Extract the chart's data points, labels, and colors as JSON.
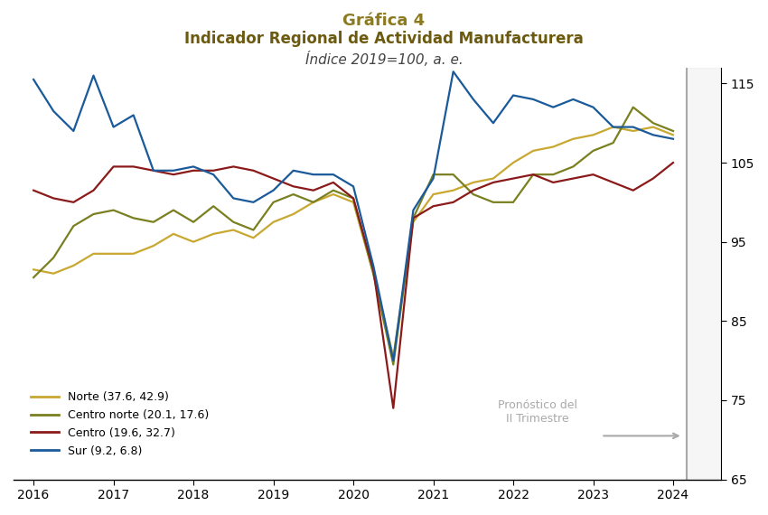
{
  "title1": "Gráfica 4",
  "title2": "Indicador Regional de Actividad Manufacturera",
  "title3": "Índice 2019=100, a. e.",
  "title_color": "#8B7A20",
  "subtitle_color": "#6B5A10",
  "ylim": [
    65,
    117
  ],
  "yticks": [
    65,
    75,
    85,
    95,
    105,
    115
  ],
  "xlim": [
    2015.75,
    2024.6
  ],
  "xticks": [
    2016,
    2017,
    2018,
    2019,
    2020,
    2021,
    2022,
    2023,
    2024
  ],
  "shaded_x_start": 2024.17,
  "shaded_x_end": 2024.6,
  "legend_labels": [
    "Norte (37.6, 42.9)",
    "Centro norte (20.1, 17.6)",
    "Centro (19.6, 32.7)",
    "Sur (9.2, 6.8)"
  ],
  "line_colors": [
    "#C8A830",
    "#7A8020",
    "#8B1A1A",
    "#1A5A9A"
  ],
  "norte": {
    "x": [
      2016.0,
      2016.25,
      2016.5,
      2016.75,
      2017.0,
      2017.25,
      2017.5,
      2017.75,
      2018.0,
      2018.25,
      2018.5,
      2018.75,
      2019.0,
      2019.25,
      2019.5,
      2019.75,
      2020.0,
      2020.25,
      2020.5,
      2020.75,
      2021.0,
      2021.25,
      2021.5,
      2021.75,
      2022.0,
      2022.25,
      2022.5,
      2022.75,
      2023.0,
      2023.25,
      2023.5,
      2023.75,
      2024.0
    ],
    "y": [
      91.5,
      91.0,
      92.0,
      93.5,
      93.5,
      93.5,
      94.5,
      96.0,
      95.0,
      96.0,
      96.5,
      95.5,
      97.5,
      98.5,
      100.0,
      101.0,
      100.0,
      91.0,
      80.5,
      97.5,
      101.0,
      101.5,
      102.5,
      103.0,
      105.0,
      106.5,
      107.0,
      108.0,
      108.5,
      109.5,
      109.0,
      109.5,
      108.5
    ]
  },
  "centro_norte": {
    "x": [
      2016.0,
      2016.25,
      2016.5,
      2016.75,
      2017.0,
      2017.25,
      2017.5,
      2017.75,
      2018.0,
      2018.25,
      2018.5,
      2018.75,
      2019.0,
      2019.25,
      2019.5,
      2019.75,
      2020.0,
      2020.25,
      2020.5,
      2020.75,
      2021.0,
      2021.25,
      2021.5,
      2021.75,
      2022.0,
      2022.25,
      2022.5,
      2022.75,
      2023.0,
      2023.25,
      2023.5,
      2023.75,
      2024.0
    ],
    "y": [
      90.5,
      93.0,
      97.0,
      98.5,
      99.0,
      98.0,
      97.5,
      99.0,
      97.5,
      99.5,
      97.5,
      96.5,
      100.0,
      101.0,
      100.0,
      101.5,
      100.5,
      91.0,
      79.5,
      98.0,
      103.5,
      103.5,
      101.0,
      100.0,
      100.0,
      103.5,
      103.5,
      104.5,
      106.5,
      107.5,
      112.0,
      110.0,
      109.0
    ]
  },
  "centro": {
    "x": [
      2016.0,
      2016.25,
      2016.5,
      2016.75,
      2017.0,
      2017.25,
      2017.5,
      2017.75,
      2018.0,
      2018.25,
      2018.5,
      2018.75,
      2019.0,
      2019.25,
      2019.5,
      2019.75,
      2020.0,
      2020.25,
      2020.5,
      2020.75,
      2021.0,
      2021.25,
      2021.5,
      2021.75,
      2022.0,
      2022.25,
      2022.5,
      2022.75,
      2023.0,
      2023.25,
      2023.5,
      2023.75,
      2024.0
    ],
    "y": [
      101.5,
      100.5,
      100.0,
      101.5,
      104.5,
      104.5,
      104.0,
      103.5,
      104.0,
      104.0,
      104.5,
      104.0,
      103.0,
      102.0,
      101.5,
      102.5,
      100.5,
      91.5,
      74.0,
      98.0,
      99.5,
      100.0,
      101.5,
      102.5,
      103.0,
      103.5,
      102.5,
      103.0,
      103.5,
      102.5,
      101.5,
      103.0,
      105.0
    ]
  },
  "sur": {
    "x": [
      2016.0,
      2016.25,
      2016.5,
      2016.75,
      2017.0,
      2017.25,
      2017.5,
      2017.75,
      2018.0,
      2018.25,
      2018.5,
      2018.75,
      2019.0,
      2019.25,
      2019.5,
      2019.75,
      2020.0,
      2020.25,
      2020.5,
      2020.75,
      2021.0,
      2021.25,
      2021.5,
      2021.75,
      2022.0,
      2022.25,
      2022.5,
      2022.75,
      2023.0,
      2023.25,
      2023.5,
      2023.75,
      2024.0
    ],
    "y": [
      115.5,
      111.5,
      109.0,
      116.0,
      109.5,
      111.0,
      104.0,
      104.0,
      104.5,
      103.5,
      100.5,
      100.0,
      101.5,
      104.0,
      103.5,
      103.5,
      102.0,
      92.0,
      80.0,
      99.0,
      103.0,
      116.5,
      113.0,
      110.0,
      113.5,
      113.0,
      112.0,
      113.0,
      112.0,
      109.5,
      109.5,
      108.5,
      108.0
    ]
  },
  "forecast_label_line1": "Pronóstico del",
  "forecast_label_line2": "II Trimestre",
  "background_color": "#ffffff"
}
